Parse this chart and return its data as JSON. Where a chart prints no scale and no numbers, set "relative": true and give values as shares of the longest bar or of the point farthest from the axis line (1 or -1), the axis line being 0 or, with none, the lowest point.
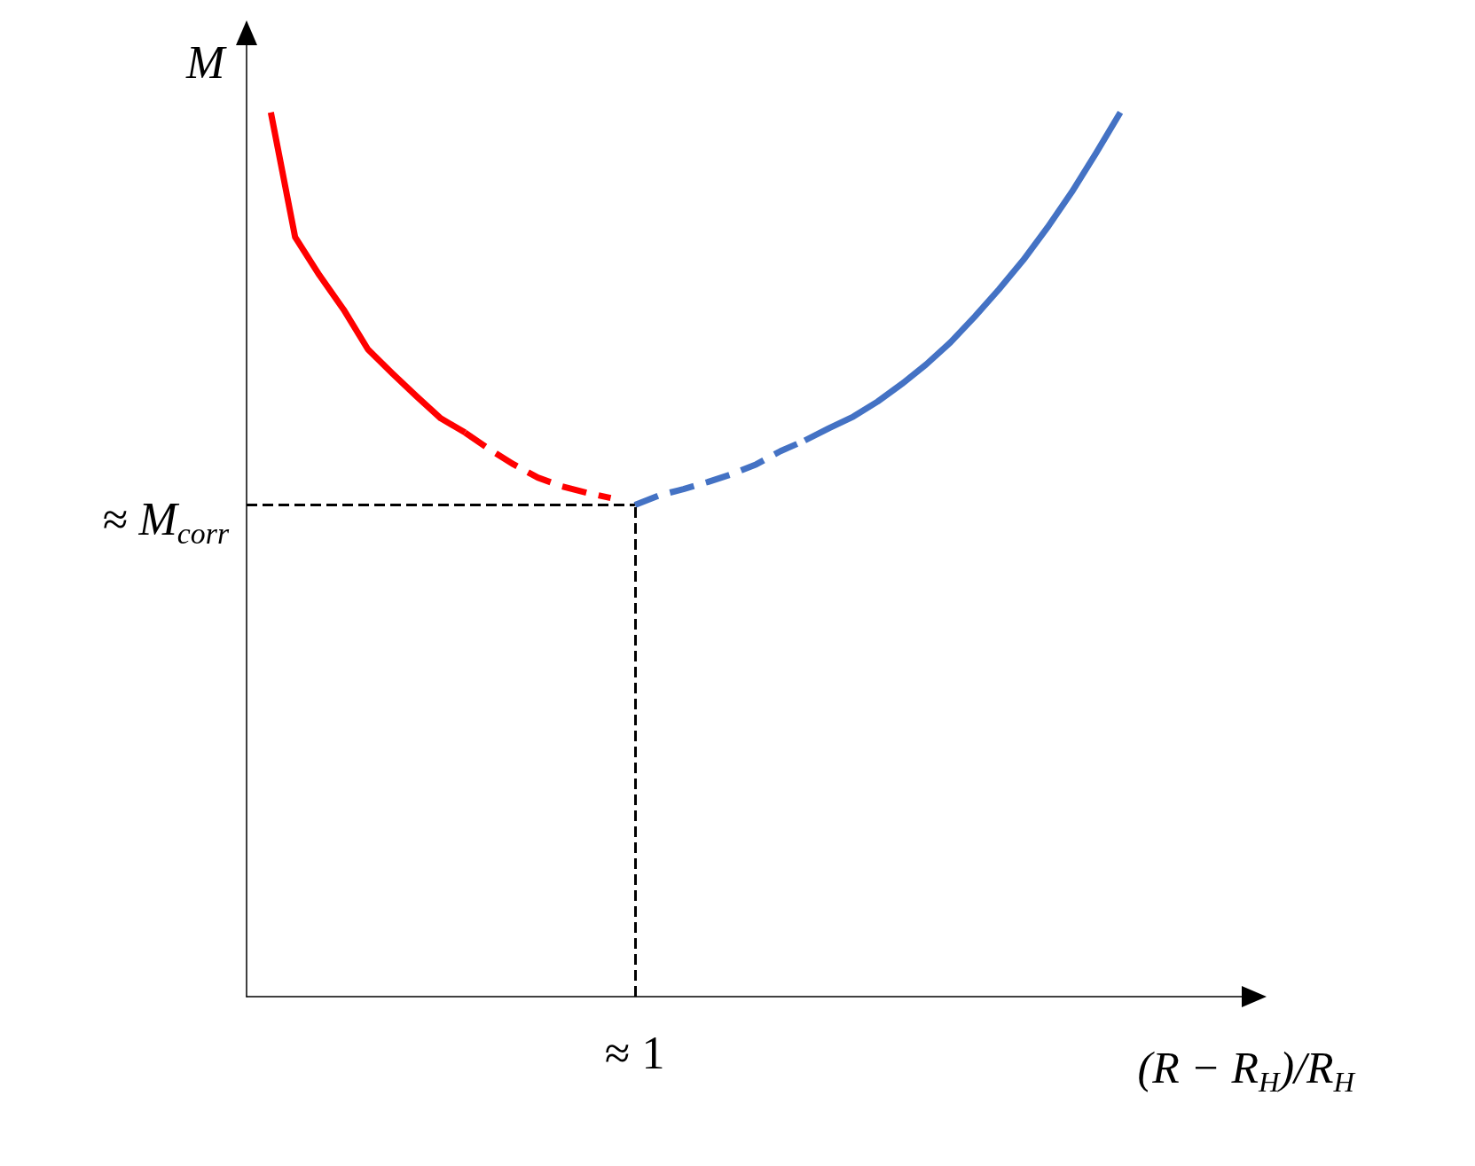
{
  "chart_data": {
    "type": "line",
    "relative": true,
    "ylabel": "M",
    "xlabel": "(R − R$_{H}$)/R$_{H}$",
    "marker": "none",
    "categories": [
      null,
      null,
      null,
      null,
      null,
      null,
      null,
      null,
      null,
      null,
      null,
      null,
      null,
      null,
      null,
      null,
      null,
      null,
      null,
      null,
      null,
      null,
      null,
      null,
      null,
      null,
      null,
      null,
      null,
      null,
      null,
      null,
      null,
      null,
      null,
      null,
      null,
      null,
      null,
      null,
      null,
      null
    ],
    "series": [
      {
        "color": "#ff0000",
        "line_style": "solid",
        "values": [
          null,
          1.0,
          0.859,
          0.816,
          0.777,
          0.732,
          0.705,
          0.679,
          0.654,
          0.638,
          null,
          null,
          null,
          null,
          null,
          null,
          null,
          null,
          null,
          null,
          null,
          null,
          null,
          null,
          null,
          null,
          null,
          null,
          null,
          null,
          null,
          null,
          null,
          null,
          null,
          null,
          null,
          null,
          null,
          null,
          null,
          null
        ]
      },
      {
        "color": "#ff0000",
        "line_style": "dashed",
        "values": [
          null,
          null,
          null,
          null,
          null,
          null,
          null,
          null,
          null,
          0.638,
          0.619,
          0.602,
          0.587,
          0.577,
          0.57,
          0.564,
          null,
          null,
          null,
          null,
          null,
          null,
          null,
          null,
          null,
          null,
          null,
          null,
          null,
          null,
          null,
          null,
          null,
          null,
          null,
          null,
          null,
          null,
          null,
          null,
          null,
          null
        ]
      },
      {
        "color": "#4472c4",
        "line_style": "dashed",
        "values": [
          null,
          null,
          null,
          null,
          null,
          null,
          null,
          null,
          null,
          null,
          null,
          null,
          null,
          null,
          null,
          null,
          0.556,
          0.567,
          0.574,
          0.582,
          0.591,
          0.602,
          0.617,
          0.629,
          null,
          null,
          null,
          null,
          null,
          null,
          null,
          null,
          null,
          null,
          null,
          null,
          null,
          null,
          null,
          null,
          null,
          null
        ]
      },
      {
        "color": "#4472c4",
        "line_style": "solid",
        "values": [
          null,
          null,
          null,
          null,
          null,
          null,
          null,
          null,
          null,
          null,
          null,
          null,
          null,
          null,
          null,
          null,
          null,
          null,
          null,
          null,
          null,
          null,
          null,
          0.629,
          0.643,
          0.656,
          0.673,
          0.693,
          0.715,
          0.74,
          0.769,
          0.8,
          0.833,
          0.87,
          0.91,
          0.954,
          1.0,
          null,
          null,
          null,
          null,
          null
        ]
      }
    ],
    "ref_lines": [
      {
        "axis": "y",
        "value": 0.556,
        "label": "≈ M$_{corr}$",
        "color": "#000000",
        "line_style": "dashed"
      },
      {
        "axis": "x",
        "label": "≈ 1",
        "color": "#000000",
        "line_style": "dashed"
      }
    ]
  }
}
